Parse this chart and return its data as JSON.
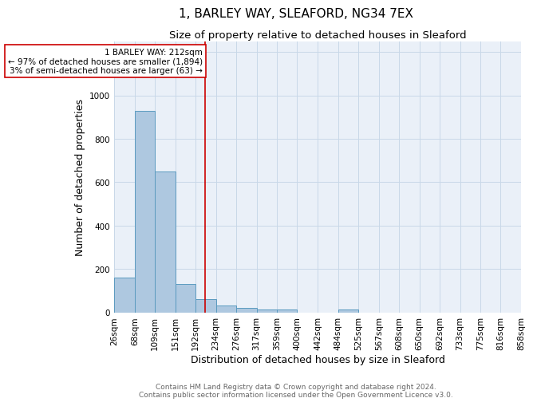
{
  "title": "1, BARLEY WAY, SLEAFORD, NG34 7EX",
  "subtitle": "Size of property relative to detached houses in Sleaford",
  "xlabel": "Distribution of detached houses by size in Sleaford",
  "ylabel": "Number of detached properties",
  "bar_edges": [
    26,
    68,
    109,
    151,
    192,
    234,
    276,
    317,
    359,
    400,
    442,
    484,
    525,
    567,
    608,
    650,
    692,
    733,
    775,
    816,
    858
  ],
  "bar_heights": [
    160,
    930,
    650,
    130,
    60,
    30,
    20,
    12,
    12,
    0,
    0,
    12,
    0,
    0,
    0,
    0,
    0,
    0,
    0,
    0
  ],
  "bar_color": "#aec8e0",
  "bar_edge_color": "#5a9abf",
  "vline_x": 212,
  "vline_color": "#cc0000",
  "annotation_text": "1 BARLEY WAY: 212sqm\n← 97% of detached houses are smaller (1,894)\n3% of semi-detached houses are larger (63) →",
  "annotation_box_color": "#cc0000",
  "annotation_text_color": "#000000",
  "ylim": [
    0,
    1250
  ],
  "yticks": [
    0,
    200,
    400,
    600,
    800,
    1000,
    1200
  ],
  "grid_color": "#c8d8e8",
  "bg_color": "#eaf0f8",
  "footer_line1": "Contains HM Land Registry data © Crown copyright and database right 2024.",
  "footer_line2": "Contains public sector information licensed under the Open Government Licence v3.0.",
  "title_fontsize": 11,
  "subtitle_fontsize": 9.5,
  "xlabel_fontsize": 9,
  "ylabel_fontsize": 9,
  "tick_fontsize": 7.5,
  "annotation_fontsize": 7.5,
  "footer_fontsize": 6.5
}
